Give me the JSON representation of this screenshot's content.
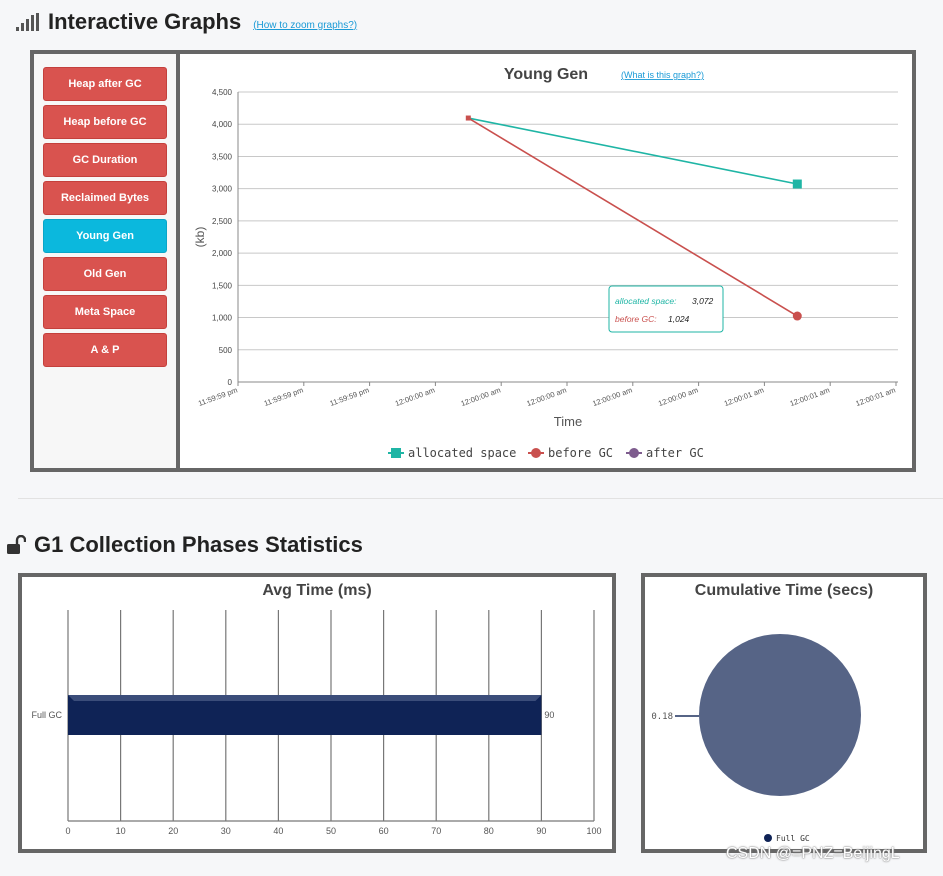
{
  "interactive": {
    "title": "Interactive Graphs",
    "zoom_link": "(How to zoom graphs?)",
    "icon": "signal-bars-icon",
    "buttons": [
      {
        "label": "Heap after GC",
        "active": false
      },
      {
        "label": "Heap before GC",
        "active": false
      },
      {
        "label": "GC Duration",
        "active": false
      },
      {
        "label": "Reclaimed Bytes",
        "active": false
      },
      {
        "label": "Young Gen",
        "active": true
      },
      {
        "label": "Old Gen",
        "active": false
      },
      {
        "label": "Meta Space",
        "active": false
      },
      {
        "label": "A & P",
        "active": false
      }
    ]
  },
  "young_gen_chart": {
    "title": "Young Gen",
    "what_link": "(What is this graph?)",
    "tooltip": {
      "allocated_label": "allocated space:",
      "allocated_value": "3,072",
      "before_label": "before GC:",
      "before_value": "1,024"
    }
  },
  "phases": {
    "title": "G1 Collection Phases Statistics",
    "icon": "unlock-icon"
  },
  "watermark": "CSDN @=PNZ=BeijingL",
  "colors": {
    "allocated": "#1fb5a5",
    "before_gc": "#c9504e",
    "after_gc": "#7e5c8e",
    "bar": "#0f2356",
    "pie": "#566486",
    "button": "#d9534f",
    "button_active": "#0bb8dd"
  },
  "chart_data": [
    {
      "type": "line",
      "title": "Young Gen",
      "xlabel": "Time",
      "ylabel": "(kb)",
      "ylim": [
        0,
        4500
      ],
      "yticks": [
        "0",
        "500",
        "1,000",
        "1,500",
        "2,000",
        "2,500",
        "3,000",
        "3,500",
        "4,000",
        "4,500"
      ],
      "xticks": [
        "11:59:59 pm",
        "11:59:59 pm",
        "11:59:59 pm",
        "12:00:00 am",
        "12:00:00 am",
        "12:00:00 am",
        "12:00:00 am",
        "12:00:00 am",
        "12:00:01 am",
        "12:00:01 am",
        "12:00:01 am"
      ],
      "x_points": [
        3.5,
        8.5
      ],
      "series": [
        {
          "name": "allocated space",
          "values": [
            4096,
            3072
          ]
        },
        {
          "name": "before GC",
          "values": [
            4096,
            1024
          ]
        },
        {
          "name": "after GC",
          "values": []
        }
      ],
      "legend_position": "bottom",
      "grid": true
    },
    {
      "type": "bar",
      "orientation": "horizontal",
      "title": "Avg Time (ms)",
      "categories": [
        "Full GC"
      ],
      "values": [
        90
      ],
      "value_labels": [
        "90"
      ],
      "xlim": [
        0,
        100
      ],
      "xticks": [
        "0",
        "10",
        "20",
        "30",
        "40",
        "50",
        "60",
        "70",
        "80",
        "90",
        "100"
      ],
      "grid": true
    },
    {
      "type": "pie",
      "title": "Cumulative Time (secs)",
      "categories": [
        "Full GC"
      ],
      "values": [
        0.18
      ],
      "value_labels": [
        "0.18"
      ],
      "legend_position": "bottom"
    }
  ]
}
